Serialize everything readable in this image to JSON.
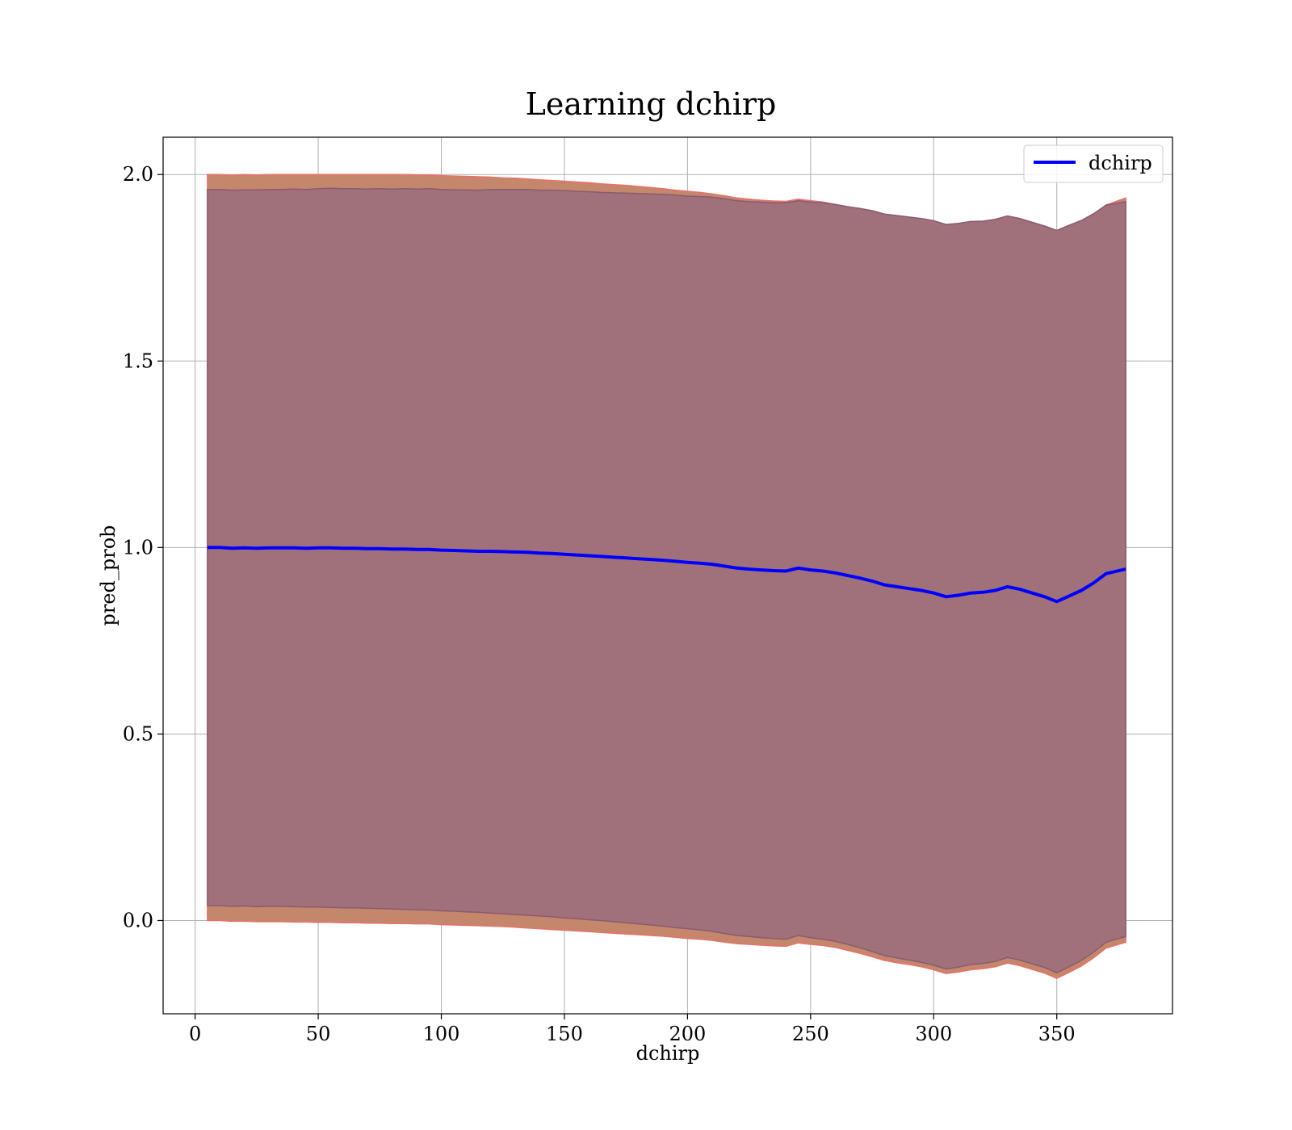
{
  "chart_data": {
    "type": "line",
    "title": "Learning dchirp",
    "xlabel": "dchirp",
    "ylabel": "pred_prob",
    "xlim": [
      -13,
      397
    ],
    "ylim": [
      -0.25,
      2.1
    ],
    "xticks": [
      0,
      50,
      100,
      150,
      200,
      250,
      300,
      350
    ],
    "yticks": [
      0.0,
      0.5,
      1.0,
      1.5,
      2.0
    ],
    "xtick_labels": [
      "0",
      "50",
      "100",
      "150",
      "200",
      "250",
      "300",
      "350"
    ],
    "ytick_labels": [
      "0.0",
      "0.5",
      "1.0",
      "1.5",
      "2.0"
    ],
    "grid": true,
    "legend": {
      "position": "top-right",
      "entries": [
        "dchirp"
      ]
    },
    "colors": {
      "line": "#0000ff",
      "outer_band": "#c4876b",
      "outer_band_edge": "#e8706a",
      "inner_band": "#a0717a",
      "inner_band_edge": "#8a5a72",
      "grid": "#b0b0b0"
    },
    "series": [
      {
        "name": "dchirp",
        "x": [
          5,
          10,
          15,
          20,
          25,
          30,
          35,
          40,
          45,
          50,
          55,
          60,
          65,
          70,
          75,
          80,
          85,
          90,
          95,
          100,
          105,
          110,
          115,
          120,
          125,
          130,
          135,
          140,
          145,
          150,
          155,
          160,
          165,
          170,
          175,
          180,
          185,
          190,
          195,
          200,
          205,
          210,
          215,
          220,
          225,
          230,
          235,
          240,
          245,
          250,
          255,
          260,
          265,
          270,
          275,
          280,
          285,
          290,
          295,
          300,
          305,
          310,
          315,
          320,
          325,
          330,
          335,
          340,
          345,
          350,
          355,
          360,
          365,
          370,
          378
        ],
        "y": [
          1.0,
          1.0,
          0.998,
          0.999,
          0.998,
          0.999,
          0.999,
          0.999,
          0.998,
          0.999,
          0.999,
          0.998,
          0.998,
          0.997,
          0.997,
          0.996,
          0.996,
          0.995,
          0.995,
          0.993,
          0.992,
          0.991,
          0.99,
          0.99,
          0.989,
          0.988,
          0.987,
          0.985,
          0.984,
          0.982,
          0.98,
          0.978,
          0.976,
          0.974,
          0.972,
          0.97,
          0.968,
          0.966,
          0.963,
          0.96,
          0.958,
          0.955,
          0.95,
          0.945,
          0.942,
          0.94,
          0.938,
          0.937,
          0.945,
          0.94,
          0.937,
          0.932,
          0.925,
          0.918,
          0.91,
          0.9,
          0.895,
          0.89,
          0.885,
          0.878,
          0.868,
          0.872,
          0.878,
          0.88,
          0.885,
          0.895,
          0.888,
          0.878,
          0.868,
          0.855,
          0.87,
          0.885,
          0.905,
          0.93,
          0.942
        ]
      }
    ],
    "bands": [
      {
        "role": "outer",
        "lower": [
          0.0,
          0.0,
          -0.002,
          -0.002,
          -0.003,
          -0.003,
          -0.003,
          -0.004,
          -0.004,
          -0.005,
          -0.005,
          -0.006,
          -0.006,
          -0.007,
          -0.007,
          -0.008,
          -0.008,
          -0.009,
          -0.009,
          -0.011,
          -0.012,
          -0.013,
          -0.014,
          -0.015,
          -0.016,
          -0.018,
          -0.02,
          -0.022,
          -0.024,
          -0.026,
          -0.028,
          -0.03,
          -0.032,
          -0.034,
          -0.036,
          -0.038,
          -0.04,
          -0.042,
          -0.045,
          -0.048,
          -0.05,
          -0.053,
          -0.058,
          -0.062,
          -0.064,
          -0.066,
          -0.068,
          -0.069,
          -0.06,
          -0.064,
          -0.067,
          -0.072,
          -0.08,
          -0.088,
          -0.097,
          -0.107,
          -0.113,
          -0.118,
          -0.124,
          -0.132,
          -0.142,
          -0.138,
          -0.132,
          -0.129,
          -0.124,
          -0.114,
          -0.121,
          -0.131,
          -0.141,
          -0.155,
          -0.139,
          -0.122,
          -0.1,
          -0.074,
          -0.058
        ],
        "upper": [
          2.0,
          2.0,
          1.998,
          2.0,
          1.999,
          2.0,
          2.0,
          2.0,
          2.0,
          2.0,
          2.0,
          2.0,
          2.0,
          2.0,
          2.0,
          2.0,
          2.0,
          1.999,
          1.999,
          1.997,
          1.996,
          1.995,
          1.994,
          1.993,
          1.991,
          1.99,
          1.988,
          1.986,
          1.984,
          1.982,
          1.98,
          1.978,
          1.975,
          1.973,
          1.971,
          1.968,
          1.965,
          1.962,
          1.958,
          1.955,
          1.952,
          1.948,
          1.943,
          1.937,
          1.934,
          1.931,
          1.929,
          1.928,
          1.934,
          1.93,
          1.926,
          1.92,
          1.912,
          1.905,
          1.896,
          1.886,
          1.88,
          1.875,
          1.87,
          1.862,
          1.852,
          1.856,
          1.862,
          1.865,
          1.869,
          1.878,
          1.871,
          1.861,
          1.851,
          1.84,
          1.856,
          1.872,
          1.893,
          1.918,
          1.937
        ]
      },
      {
        "role": "inner",
        "lower": [
          0.04,
          0.04,
          0.038,
          0.039,
          0.037,
          0.038,
          0.038,
          0.037,
          0.036,
          0.036,
          0.035,
          0.034,
          0.034,
          0.033,
          0.032,
          0.031,
          0.03,
          0.029,
          0.028,
          0.026,
          0.025,
          0.023,
          0.022,
          0.02,
          0.018,
          0.016,
          0.014,
          0.012,
          0.01,
          0.007,
          0.005,
          0.002,
          0.0,
          -0.003,
          -0.006,
          -0.009,
          -0.012,
          -0.015,
          -0.019,
          -0.022,
          -0.025,
          -0.029,
          -0.035,
          -0.04,
          -0.043,
          -0.046,
          -0.048,
          -0.05,
          -0.04,
          -0.046,
          -0.05,
          -0.056,
          -0.064,
          -0.073,
          -0.083,
          -0.094,
          -0.1,
          -0.106,
          -0.112,
          -0.12,
          -0.13,
          -0.125,
          -0.118,
          -0.115,
          -0.11,
          -0.099,
          -0.106,
          -0.116,
          -0.126,
          -0.14,
          -0.124,
          -0.107,
          -0.085,
          -0.058,
          -0.043
        ],
        "upper": [
          1.96,
          1.96,
          1.958,
          1.959,
          1.959,
          1.96,
          1.96,
          1.961,
          1.96,
          1.962,
          1.963,
          1.962,
          1.962,
          1.961,
          1.962,
          1.961,
          1.962,
          1.961,
          1.962,
          1.96,
          1.959,
          1.959,
          1.958,
          1.96,
          1.96,
          1.96,
          1.96,
          1.958,
          1.958,
          1.957,
          1.955,
          1.954,
          1.952,
          1.951,
          1.95,
          1.949,
          1.948,
          1.947,
          1.945,
          1.942,
          1.941,
          1.939,
          1.935,
          1.93,
          1.927,
          1.926,
          1.924,
          1.924,
          1.93,
          1.926,
          1.924,
          1.92,
          1.914,
          1.909,
          1.903,
          1.894,
          1.89,
          1.886,
          1.882,
          1.876,
          1.866,
          1.869,
          1.874,
          1.875,
          1.88,
          1.889,
          1.882,
          1.872,
          1.862,
          1.85,
          1.864,
          1.877,
          1.895,
          1.918,
          1.927
        ]
      }
    ]
  }
}
